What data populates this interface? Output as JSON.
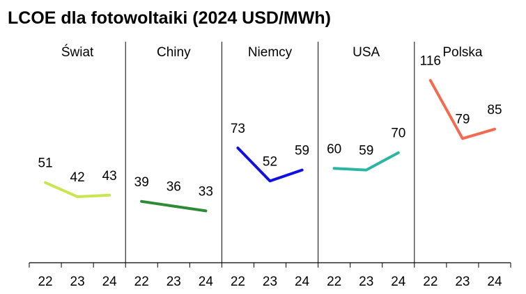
{
  "chart_data": {
    "type": "line",
    "title": "LCOE dla fotowoltaiki (2024 USD/MWh)",
    "xlabel": "",
    "ylabel": "",
    "categories": [
      "22",
      "23",
      "24"
    ],
    "ylim": [
      0,
      130
    ],
    "grid": false,
    "panels": [
      {
        "name": "Świat",
        "color": "#c8e650",
        "values": [
          51,
          42,
          43
        ]
      },
      {
        "name": "Chiny",
        "color": "#2e8b35",
        "values": [
          39,
          36,
          33
        ]
      },
      {
        "name": "Niemcy",
        "color": "#1010e0",
        "values": [
          73,
          52,
          59
        ]
      },
      {
        "name": "USA",
        "color": "#2ab5a5",
        "values": [
          60,
          59,
          70
        ]
      },
      {
        "name": "Polska",
        "color": "#f46a50",
        "values": [
          116,
          79,
          85
        ]
      }
    ]
  }
}
